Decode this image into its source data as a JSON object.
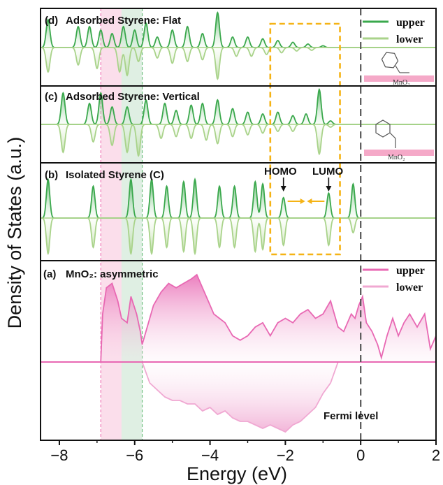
{
  "chart_data": {
    "type": "area",
    "xlabel": "Energy (eV)",
    "ylabel": "Density of States (a.u.)",
    "xlim": [
      -8.5,
      2
    ],
    "xticks": [
      -8,
      -6,
      -4,
      -2,
      0,
      2
    ],
    "xtick_labels": [
      "−8",
      "−6",
      "−4",
      "−2",
      "0",
      "2"
    ],
    "fermi_level": 0,
    "highlight_bands": [
      {
        "x0": -6.9,
        "x1": -6.35,
        "color": "#f6b6d2"
      },
      {
        "x0": -6.35,
        "x1": -5.8,
        "color": "#b9dcc0"
      }
    ],
    "dashed_box": {
      "x0": -2.4,
      "x1": -0.55,
      "color": "#f5b315"
    },
    "panels": [
      {
        "key": "d",
        "label": "(d)",
        "title": "Adsorbed Styrene: Flat",
        "legend": [
          "upper",
          "lower"
        ],
        "colors": {
          "upper": "#3aa84c",
          "lower": "#a9d38a"
        },
        "substrate_label": "MnO₂",
        "peaks": [
          [
            -8.3,
            0.8
          ],
          [
            -7.5,
            0.6
          ],
          [
            -7.2,
            0.6
          ],
          [
            -6.9,
            0.5
          ],
          [
            -6.6,
            0.4
          ],
          [
            -6.3,
            0.6
          ],
          [
            -6.0,
            0.5
          ],
          [
            -5.7,
            0.7
          ],
          [
            -5.4,
            0.3
          ],
          [
            -5.0,
            0.5
          ],
          [
            -4.6,
            0.6
          ],
          [
            -4.2,
            0.4
          ],
          [
            -3.8,
            1.0
          ],
          [
            -3.4,
            0.3
          ],
          [
            -3.0,
            0.3
          ],
          [
            -2.6,
            0.25
          ],
          [
            -2.2,
            0.2
          ],
          [
            -1.8,
            0.15
          ],
          [
            -1.4,
            0.1
          ],
          [
            -1.0,
            0.05
          ]
        ],
        "lower_peaks": [
          [
            -8.3,
            0.7
          ],
          [
            -7.5,
            0.5
          ],
          [
            -7.0,
            0.6
          ],
          [
            -6.4,
            0.7
          ],
          [
            -6.2,
            0.8
          ],
          [
            -5.9,
            0.4
          ],
          [
            -5.4,
            0.3
          ],
          [
            -5.0,
            0.45
          ],
          [
            -4.6,
            0.4
          ],
          [
            -4.2,
            0.35
          ],
          [
            -3.8,
            0.9
          ],
          [
            -3.3,
            0.25
          ],
          [
            -2.9,
            0.25
          ],
          [
            -2.5,
            0.2
          ],
          [
            -2.1,
            0.15
          ],
          [
            -1.7,
            0.1
          ],
          [
            -1.3,
            0.08
          ]
        ]
      },
      {
        "key": "c",
        "label": "(c)",
        "title": "Adsorbed Styrene: Vertical",
        "substrate_label": "MnO₂",
        "peaks": [
          [
            -7.9,
            0.9
          ],
          [
            -7.2,
            0.6
          ],
          [
            -6.9,
            0.9
          ],
          [
            -6.6,
            0.5
          ],
          [
            -6.2,
            0.5
          ],
          [
            -5.7,
            0.7
          ],
          [
            -5.2,
            0.6
          ],
          [
            -4.9,
            0.4
          ],
          [
            -4.5,
            0.55
          ],
          [
            -4.2,
            0.6
          ],
          [
            -3.8,
            0.7
          ],
          [
            -3.4,
            0.45
          ],
          [
            -3.0,
            0.35
          ],
          [
            -2.6,
            0.3
          ],
          [
            -2.2,
            0.35
          ],
          [
            -1.8,
            0.25
          ],
          [
            -1.45,
            0.3
          ],
          [
            -1.1,
            1.0
          ],
          [
            -0.8,
            0.1
          ]
        ],
        "lower_peaks": [
          [
            -7.9,
            0.8
          ],
          [
            -7.1,
            0.5
          ],
          [
            -6.6,
            0.6
          ],
          [
            -6.2,
            0.8
          ],
          [
            -5.9,
            0.9
          ],
          [
            -5.3,
            0.4
          ],
          [
            -4.9,
            0.35
          ],
          [
            -4.5,
            0.4
          ],
          [
            -4.1,
            0.45
          ],
          [
            -3.8,
            0.55
          ],
          [
            -3.4,
            0.35
          ],
          [
            -3.0,
            0.3
          ],
          [
            -2.6,
            0.25
          ],
          [
            -2.2,
            0.2
          ],
          [
            -1.8,
            0.2
          ],
          [
            -1.1,
            0.85
          ],
          [
            -0.8,
            0.08
          ]
        ]
      },
      {
        "key": "b",
        "label": "(b)",
        "title": "Isolated Styrene (C)",
        "homo_label": "HOMO",
        "lumo_label": "LUMO",
        "homo_x": -2.05,
        "lumo_x": -0.85,
        "peaks": [
          [
            -8.3,
            0.85
          ],
          [
            -7.1,
            0.7
          ],
          [
            -6.1,
            0.85
          ],
          [
            -5.55,
            0.85
          ],
          [
            -5.15,
            0.7
          ],
          [
            -4.7,
            0.8
          ],
          [
            -4.4,
            0.85
          ],
          [
            -3.75,
            0.7
          ],
          [
            -3.35,
            0.7
          ],
          [
            -2.8,
            0.8
          ],
          [
            -2.6,
            0.75
          ],
          [
            -2.05,
            0.45
          ],
          [
            -0.85,
            0.55
          ],
          [
            -0.2,
            0.75
          ]
        ],
        "lower_peaks": [
          [
            -8.3,
            0.85
          ],
          [
            -7.1,
            0.7
          ],
          [
            -6.1,
            0.85
          ],
          [
            -5.55,
            0.85
          ],
          [
            -5.15,
            0.7
          ],
          [
            -4.7,
            0.8
          ],
          [
            -4.4,
            0.85
          ],
          [
            -3.75,
            0.7
          ],
          [
            -3.35,
            0.7
          ],
          [
            -2.8,
            0.8
          ],
          [
            -2.6,
            0.75
          ],
          [
            -2.05,
            0.65
          ],
          [
            -0.85,
            0.65
          ],
          [
            -0.2,
            0.35
          ]
        ]
      },
      {
        "key": "a",
        "label": "(a)",
        "title": "MnO₂: asymmetric",
        "legend": [
          "upper",
          "lower"
        ],
        "colors": {
          "upper": "#e868b3",
          "lower": "#f0a8d2"
        },
        "fermi_label": "Fermi level",
        "upper_x": [
          -6.9,
          -6.85,
          -6.75,
          -6.6,
          -6.45,
          -6.35,
          -6.2,
          -6.1,
          -5.95,
          -5.85,
          -5.8,
          -5.7,
          -5.5,
          -5.3,
          -5.1,
          -4.9,
          -4.7,
          -4.5,
          -4.35,
          -4.2,
          -4.05,
          -3.9,
          -3.75,
          -3.6,
          -3.4,
          -3.2,
          -3.0,
          -2.8,
          -2.6,
          -2.4,
          -2.2,
          -2.0,
          -1.8,
          -1.6,
          -1.4,
          -1.2,
          -1.0,
          -0.8,
          -0.6,
          -0.45,
          -0.35,
          -0.25,
          -0.15,
          -0.05,
          0.05,
          0.15,
          0.3,
          0.45,
          0.55,
          0.7,
          0.85,
          1.0,
          1.15,
          1.3,
          1.5,
          1.7,
          1.85,
          2.0
        ],
        "upper_y": [
          0,
          0.55,
          0.85,
          0.9,
          0.7,
          0.5,
          0.45,
          0.75,
          0.55,
          0.35,
          0.2,
          0.35,
          0.65,
          0.8,
          0.9,
          0.85,
          0.9,
          0.95,
          1.0,
          0.85,
          0.7,
          0.55,
          0.5,
          0.45,
          0.3,
          0.25,
          0.3,
          0.4,
          0.45,
          0.3,
          0.45,
          0.5,
          0.45,
          0.55,
          0.6,
          0.5,
          0.55,
          0.7,
          0.4,
          0.35,
          0.45,
          0.55,
          0.5,
          0.65,
          0.75,
          0.45,
          0.35,
          0.2,
          0.05,
          0.3,
          0.5,
          0.3,
          0.45,
          0.55,
          0.4,
          0.55,
          0.15,
          0.3
        ],
        "lower_x": [
          -5.8,
          -5.6,
          -5.4,
          -5.2,
          -5.0,
          -4.8,
          -4.6,
          -4.4,
          -4.2,
          -4.0,
          -3.8,
          -3.6,
          -3.4,
          -3.2,
          -3.0,
          -2.8,
          -2.6,
          -2.4,
          -2.2,
          -2.0,
          -1.8,
          -1.6,
          -1.4,
          -1.2,
          -1.0,
          -0.8,
          -0.6
        ],
        "lower_y": [
          0,
          0.3,
          0.4,
          0.5,
          0.55,
          0.55,
          0.6,
          0.6,
          0.7,
          0.65,
          0.75,
          0.7,
          0.8,
          0.85,
          0.85,
          0.9,
          0.95,
          0.9,
          0.95,
          1.0,
          0.9,
          0.85,
          0.75,
          0.65,
          0.45,
          0.3,
          0
        ]
      }
    ]
  }
}
